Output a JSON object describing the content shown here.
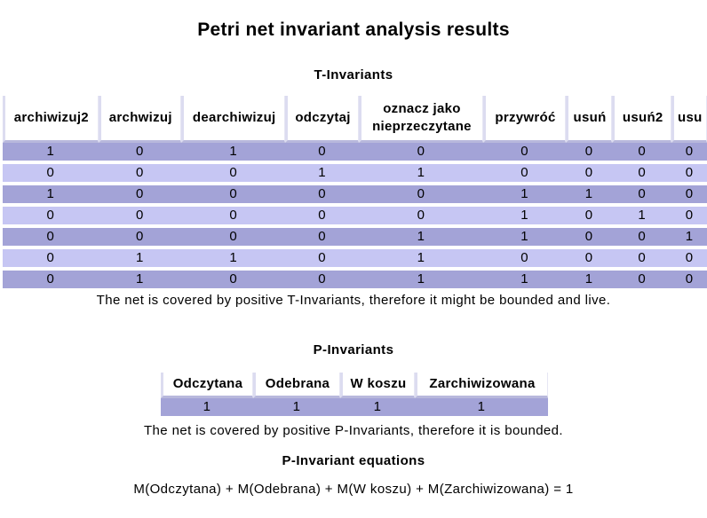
{
  "title": "Petri net invariant analysis results",
  "t_invariants": {
    "heading": "T-Invariants",
    "columns": [
      "archiwizuj2",
      "archwizuj",
      "dearchiwizuj",
      "odczytaj",
      "oznacz jako nieprzeczytane",
      "przywróć",
      "usuń",
      "usuń2",
      "usu"
    ],
    "rows": [
      [
        "1",
        "0",
        "1",
        "0",
        "0",
        "0",
        "0",
        "0",
        "0"
      ],
      [
        "0",
        "0",
        "0",
        "1",
        "1",
        "0",
        "0",
        "0",
        "0"
      ],
      [
        "1",
        "0",
        "0",
        "0",
        "0",
        "1",
        "1",
        "0",
        "0"
      ],
      [
        "0",
        "0",
        "0",
        "0",
        "0",
        "1",
        "0",
        "1",
        "0"
      ],
      [
        "0",
        "0",
        "0",
        "0",
        "1",
        "1",
        "0",
        "0",
        "1"
      ],
      [
        "0",
        "1",
        "1",
        "0",
        "1",
        "0",
        "0",
        "0",
        "0"
      ],
      [
        "0",
        "1",
        "0",
        "0",
        "1",
        "1",
        "1",
        "0",
        "0"
      ]
    ],
    "note": "The net is covered by positive T-Invariants, therefore it might be bounded and live."
  },
  "p_invariants": {
    "heading": "P-Invariants",
    "columns": [
      "Odczytana",
      "Odebrana",
      "W koszu",
      "Zarchiwizowana"
    ],
    "rows": [
      [
        "1",
        "1",
        "1",
        "1"
      ]
    ],
    "note": "The net is covered by positive P-Invariants, therefore it is bounded."
  },
  "equations": {
    "heading": "P-Invariant equations",
    "lines": [
      "M(Odczytana) + M(Odebrana) + M(W koszu) + M(Zarchiwizowana) = 1"
    ]
  },
  "colors": {
    "row_odd": "#a3a3d7",
    "row_even": "#c6c6f3"
  }
}
